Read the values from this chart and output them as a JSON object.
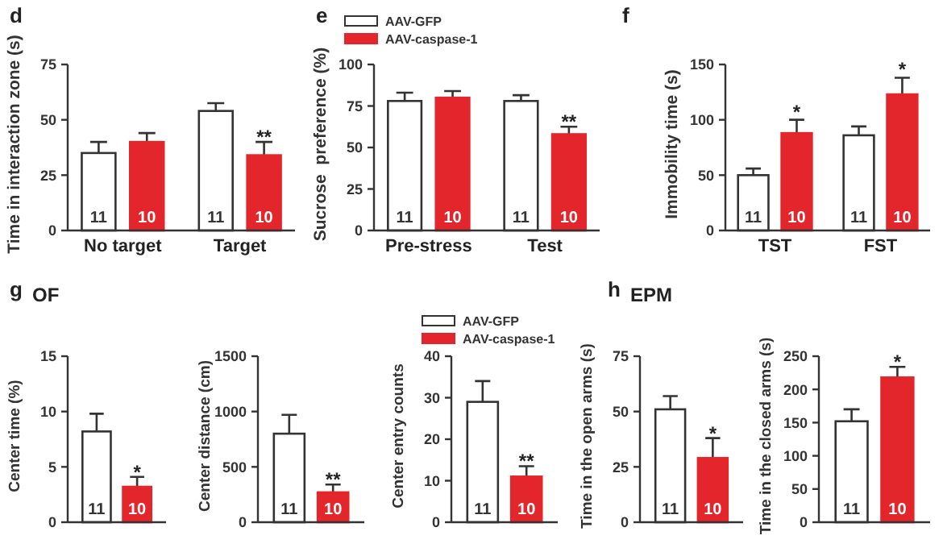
{
  "chart_data": [
    {
      "type": "bar",
      "title": "d",
      "ylabel": "Time in interaction zone (s)",
      "categories": [
        "No target",
        "Target"
      ],
      "ylim": [
        0,
        75
      ],
      "yticks": [
        0,
        25,
        50,
        75
      ],
      "series": [
        {
          "color": "#ffffff",
          "values": [
            35,
            54
          ],
          "errors": [
            5,
            3.5
          ]
        },
        {
          "color": "#e3262b",
          "values": [
            40,
            34
          ],
          "errors": [
            4,
            6
          ]
        }
      ],
      "annotations": [
        "11",
        "11",
        "10",
        "10",
        {
          "text": "**",
          "x": "Target",
          "y": 40
        }
      ]
    },
    {
      "type": "bar",
      "title": "e",
      "ylabel": "Sucrose  preference (%)",
      "categories": [
        "Pre-stress",
        "Test"
      ],
      "ylim": [
        0,
        100
      ],
      "yticks": [
        0,
        25,
        50,
        75,
        100
      ],
      "legend": "top",
      "series": [
        {
          "name": "AAV-GFP",
          "color": "#ffffff",
          "values": [
            78,
            78
          ],
          "errors": [
            5,
            3.5
          ]
        },
        {
          "name": "AAV-caspase-1",
          "color": "#e3262b",
          "values": [
            80,
            58
          ],
          "errors": [
            4,
            4.5
          ]
        }
      ],
      "annotations": [
        "11",
        "11",
        "10",
        "10",
        {
          "text": "**",
          "x": "Test",
          "y": 62.5
        }
      ]
    },
    {
      "type": "bar",
      "title": "f",
      "ylabel": "Immobility time (s)",
      "categories": [
        "TST",
        "FST"
      ],
      "ylim": [
        0,
        150
      ],
      "yticks": [
        0,
        50,
        100,
        150
      ],
      "series": [
        {
          "color": "#ffffff",
          "values": [
            50,
            86
          ],
          "errors": [
            6,
            8
          ]
        },
        {
          "color": "#e3262b",
          "values": [
            88,
            123
          ],
          "errors": [
            12,
            15
          ]
        }
      ],
      "annotations": [
        "11",
        "11",
        "10",
        "10",
        "*",
        "*"
      ]
    },
    {
      "type": "bar",
      "title": "g",
      "subtitle": "OF",
      "ylabel": "Center time (%)",
      "categories": [
        null
      ],
      "ylim": [
        0,
        15
      ],
      "yticks": [
        0,
        5,
        10,
        15
      ],
      "series": [
        {
          "color": "#ffffff",
          "values": [
            8.2
          ],
          "errors": [
            1.6
          ]
        },
        {
          "color": "#e3262b",
          "values": [
            3.2
          ],
          "errors": [
            0.9
          ]
        }
      ],
      "annotations": [
        "11",
        "10",
        {
          "text": "*",
          "y": 4.1
        }
      ]
    },
    {
      "type": "bar",
      "ylabel": "Center distance (cm)",
      "categories": [
        null
      ],
      "ylim": [
        0,
        1500
      ],
      "yticks": [
        0,
        500,
        1000,
        1500
      ],
      "series": [
        {
          "color": "#ffffff",
          "values": [
            800
          ],
          "errors": [
            170
          ]
        },
        {
          "color": "#e3262b",
          "values": [
            270
          ],
          "errors": [
            70
          ]
        }
      ],
      "annotations": [
        "11",
        "10",
        {
          "text": "**",
          "y": 340
        }
      ]
    },
    {
      "type": "bar",
      "ylabel": "Center entry counts",
      "categories": [
        null
      ],
      "ylim": [
        0,
        40
      ],
      "yticks": [
        0,
        10,
        20,
        30,
        40
      ],
      "legend": "top",
      "series": [
        {
          "name": "AAV-GFP",
          "color": "#ffffff",
          "values": [
            29
          ],
          "errors": [
            5
          ]
        },
        {
          "name": "AAV-caspase-1",
          "color": "#e3262b",
          "values": [
            11
          ],
          "errors": [
            2.5
          ]
        }
      ],
      "annotations": [
        "11",
        "10",
        {
          "text": "**",
          "y": 13.5
        }
      ]
    },
    {
      "type": "bar",
      "title": "h",
      "subtitle": "EPM",
      "ylabel": "Time in the open arms (s)",
      "categories": [
        null
      ],
      "ylim": [
        0,
        75
      ],
      "yticks": [
        0,
        25,
        50,
        75
      ],
      "series": [
        {
          "color": "#ffffff",
          "values": [
            51
          ],
          "errors": [
            6
          ]
        },
        {
          "color": "#e3262b",
          "values": [
            29
          ],
          "errors": [
            9
          ]
        }
      ],
      "annotations": [
        "11",
        "10",
        {
          "text": "*",
          "y": 38
        }
      ]
    },
    {
      "type": "bar",
      "ylabel": "Time in the closed arms (s)",
      "categories": [
        null
      ],
      "ylim": [
        0,
        250
      ],
      "yticks": [
        0,
        50,
        100,
        150,
        200,
        250
      ],
      "series": [
        {
          "color": "#ffffff",
          "values": [
            152
          ],
          "errors": [
            18
          ]
        },
        {
          "color": "#e3262b",
          "values": [
            218
          ],
          "errors": [
            16
          ]
        }
      ],
      "annotations": [
        "11",
        "10",
        {
          "text": "*",
          "y": 234
        }
      ]
    }
  ]
}
